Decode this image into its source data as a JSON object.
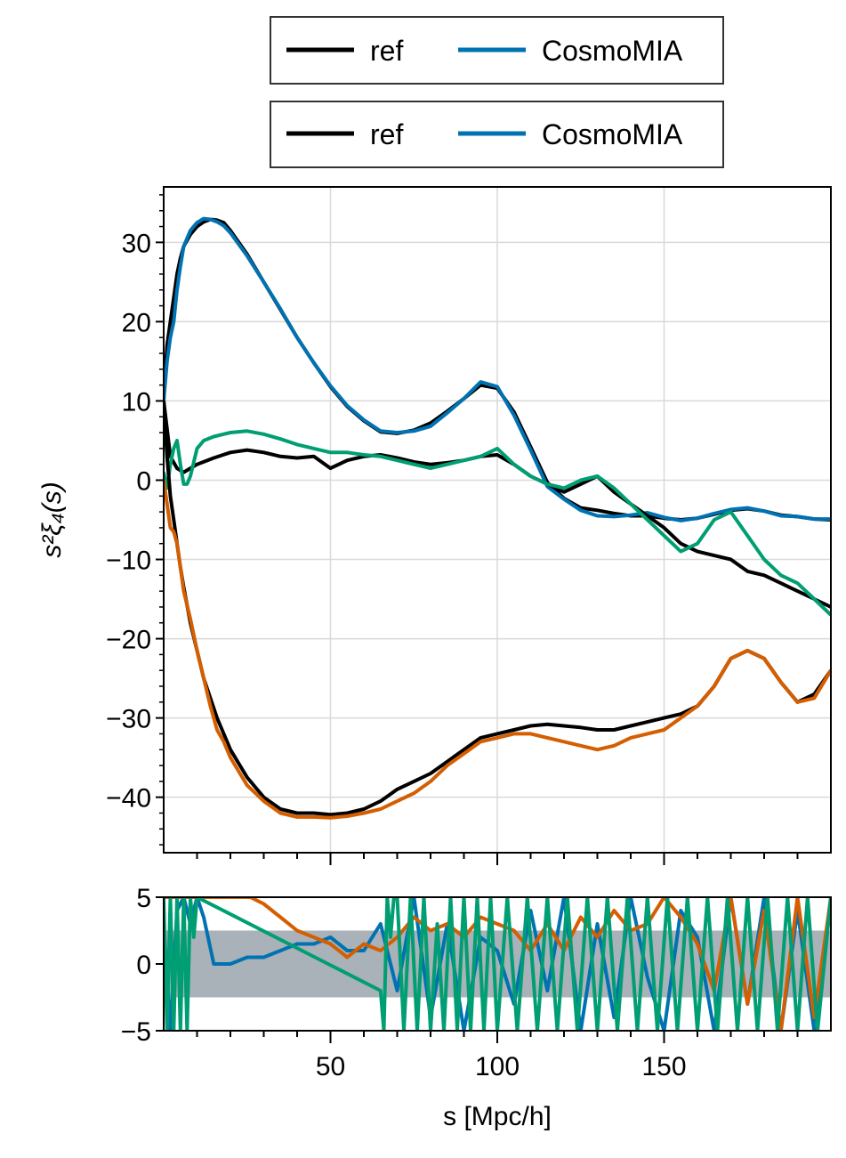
{
  "legends": [
    {
      "entries": [
        {
          "label": "ref",
          "color": "#000000"
        },
        {
          "label": "CosmoMIA",
          "color": "#0072b2"
        }
      ]
    },
    {
      "entries": [
        {
          "label": "ref",
          "color": "#000000"
        },
        {
          "label": "CosmoMIA",
          "color": "#0072b2"
        }
      ]
    }
  ],
  "chart_data": [
    {
      "type": "line",
      "ylabel": "s²ξ₄(s)",
      "xlim": [
        0,
        200
      ],
      "ylim": [
        -47,
        37
      ],
      "yticks": [
        -40,
        -30,
        -20,
        -10,
        0,
        10,
        20,
        30
      ],
      "yticklabels": [
        "−40",
        "−30",
        "−20",
        "−10",
        "0",
        "10",
        "20",
        "30"
      ],
      "xticks_major": [
        50,
        100,
        150
      ],
      "grid": true,
      "colors": {
        "ref": "#000000",
        "cosmomia": "#0072b2",
        "orange": "#d55e00",
        "green": "#009e73"
      },
      "series": [
        {
          "name": "ref",
          "color": "#000000",
          "role": "ref-blue",
          "x": [
            0,
            1,
            2,
            3,
            4,
            5,
            6,
            8,
            10,
            12,
            14,
            16,
            18,
            20,
            25,
            30,
            35,
            40,
            45,
            50,
            55,
            60,
            65,
            70,
            75,
            80,
            85,
            90,
            95,
            100,
            105,
            110,
            115,
            120,
            125,
            130,
            135,
            140,
            145,
            150,
            155,
            160,
            165,
            170,
            175,
            180,
            185,
            190,
            195,
            200
          ],
          "y": [
            10,
            17,
            20,
            23,
            26,
            28,
            29.5,
            31,
            32,
            32.6,
            32.9,
            32.8,
            32.5,
            31.5,
            28.5,
            25,
            21.5,
            18,
            14.8,
            11.8,
            9.3,
            7.5,
            6.1,
            5.9,
            6.3,
            7.2,
            8.7,
            10.3,
            12.0,
            11.6,
            8.6,
            4.2,
            -0.3,
            -2.3,
            -3.5,
            -3.8,
            -4.2,
            -4.5,
            -4.5,
            -4.8,
            -5.0,
            -4.8,
            -4.3,
            -3.8,
            -3.6,
            -3.9,
            -4.4,
            -4.6,
            -4.9,
            -5.0
          ]
        },
        {
          "name": "CosmoMIA",
          "color": "#0072b2",
          "role": "blue",
          "x": [
            0,
            1,
            2,
            3,
            4,
            5,
            6,
            8,
            10,
            12,
            14,
            16,
            18,
            20,
            25,
            30,
            35,
            40,
            45,
            50,
            55,
            60,
            65,
            70,
            75,
            80,
            85,
            90,
            95,
            100,
            105,
            110,
            115,
            120,
            125,
            130,
            135,
            140,
            145,
            150,
            155,
            160,
            165,
            170,
            175,
            180,
            185,
            190,
            195,
            200
          ],
          "y": [
            10,
            15,
            18,
            20,
            24,
            27,
            29.5,
            31.5,
            32.5,
            33.0,
            32.9,
            32.6,
            32.1,
            31.2,
            28.3,
            25,
            21.6,
            18,
            14.8,
            11.9,
            9.4,
            7.6,
            6.2,
            6.0,
            6.2,
            6.8,
            8.5,
            10.3,
            12.4,
            11.8,
            8.2,
            3.8,
            -0.8,
            -2.4,
            -3.8,
            -4.5,
            -4.6,
            -4.4,
            -4.1,
            -4.7,
            -5.1,
            -4.8,
            -4.2,
            -3.7,
            -3.5,
            -3.9,
            -4.5,
            -4.6,
            -4.9,
            -4.9
          ]
        },
        {
          "name": "ref",
          "color": "#000000",
          "role": "ref-green",
          "x": [
            0,
            2,
            4,
            6,
            8,
            10,
            15,
            20,
            25,
            30,
            35,
            40,
            45,
            50,
            55,
            60,
            65,
            70,
            75,
            80,
            85,
            90,
            95,
            100,
            105,
            110,
            115,
            120,
            125,
            130,
            135,
            140,
            145,
            150,
            155,
            160,
            165,
            170,
            175,
            180,
            185,
            190,
            195,
            200
          ],
          "y": [
            10,
            3,
            1.5,
            1.0,
            1.5,
            2.0,
            2.8,
            3.5,
            3.8,
            3.5,
            3.0,
            2.8,
            3.0,
            1.5,
            2.5,
            3.0,
            3.2,
            2.8,
            2.3,
            2.0,
            2.2,
            2.5,
            3.0,
            3.2,
            2.0,
            0.5,
            -0.5,
            -1.5,
            -0.5,
            0.5,
            -1.5,
            -3.0,
            -4.5,
            -6.0,
            -8.0,
            -9.0,
            -9.5,
            -10.0,
            -11.5,
            -12.0,
            -13.0,
            -14.0,
            -15.0,
            -16.0
          ]
        },
        {
          "name": "",
          "color": "#009e73",
          "role": "green",
          "x": [
            0,
            1,
            2,
            3,
            4,
            5,
            6,
            7,
            8,
            10,
            12,
            15,
            20,
            25,
            30,
            35,
            40,
            45,
            50,
            55,
            60,
            65,
            70,
            75,
            80,
            85,
            90,
            95,
            100,
            105,
            110,
            115,
            120,
            125,
            130,
            135,
            140,
            145,
            150,
            155,
            160,
            165,
            170,
            175,
            180,
            185,
            190,
            195,
            200
          ],
          "y": [
            1,
            -1,
            2,
            4,
            5,
            2,
            -0.5,
            -0.5,
            0.5,
            4.0,
            5.0,
            5.5,
            6.0,
            6.2,
            5.8,
            5.2,
            4.5,
            4.0,
            3.5,
            3.5,
            3.2,
            3.0,
            2.5,
            2.0,
            1.5,
            2.0,
            2.5,
            3.0,
            4.0,
            2.0,
            0.5,
            -0.5,
            -1.0,
            0.0,
            0.5,
            -1.0,
            -3.0,
            -5.0,
            -7.0,
            -9.0,
            -8.0,
            -5.0,
            -4.0,
            -7.0,
            -10.0,
            -12.0,
            -13.0,
            -15.0,
            -17.0
          ]
        },
        {
          "name": "ref",
          "color": "#000000",
          "role": "ref-orange",
          "x": [
            0,
            1,
            2,
            3,
            4,
            5,
            6,
            8,
            10,
            12,
            14,
            16,
            18,
            20,
            25,
            30,
            35,
            40,
            45,
            50,
            55,
            60,
            65,
            70,
            75,
            80,
            85,
            90,
            95,
            100,
            105,
            110,
            115,
            120,
            125,
            130,
            135,
            140,
            145,
            150,
            155,
            160,
            165,
            170,
            175,
            180,
            185,
            190,
            195,
            200
          ],
          "y": [
            10,
            3,
            -2,
            -5,
            -8,
            -11,
            -13.5,
            -18,
            -21.5,
            -25,
            -27.5,
            -30,
            -32,
            -34,
            -37.5,
            -40,
            -41.5,
            -42,
            -42,
            -42.2,
            -42,
            -41.5,
            -40.5,
            -39,
            -38,
            -37,
            -35.5,
            -34,
            -32.5,
            -32,
            -31.5,
            -31,
            -30.8,
            -31,
            -31.2,
            -31.5,
            -31.5,
            -31,
            -30.5,
            -30,
            -29.5,
            -28.5,
            -26,
            -22.5,
            -21.5,
            -22.5,
            -25.5,
            -28,
            -27,
            -24
          ]
        },
        {
          "name": "",
          "color": "#d55e00",
          "role": "orange",
          "x": [
            0,
            1,
            2,
            3,
            4,
            5,
            6,
            8,
            10,
            12,
            14,
            16,
            18,
            20,
            25,
            30,
            35,
            40,
            45,
            50,
            55,
            60,
            65,
            70,
            75,
            80,
            85,
            90,
            95,
            100,
            105,
            110,
            115,
            120,
            125,
            130,
            135,
            140,
            145,
            150,
            155,
            160,
            165,
            170,
            175,
            180,
            185,
            190,
            195,
            200
          ],
          "y": [
            0,
            -3,
            -6,
            -6.5,
            -8,
            -11,
            -14,
            -17.5,
            -21.5,
            -25,
            -28.5,
            -31.5,
            -33,
            -35,
            -38.5,
            -40.5,
            -42,
            -42.5,
            -42.5,
            -42.6,
            -42.4,
            -42,
            -41.5,
            -40.5,
            -39.5,
            -38,
            -36,
            -34.5,
            -33,
            -32.5,
            -32,
            -32,
            -32.5,
            -33,
            -33.5,
            -34,
            -33.5,
            -32.5,
            -32,
            -31.5,
            -30,
            -28.5,
            -26,
            -22.5,
            -21.5,
            -22.5,
            -25.5,
            -28,
            -27.5,
            -24
          ]
        }
      ]
    },
    {
      "type": "line",
      "xlabel": "s [Mpc/h]",
      "xlim": [
        0,
        200
      ],
      "ylim": [
        -5,
        5
      ],
      "yticks": [
        -5,
        0,
        5
      ],
      "yticklabels": [
        "−5",
        "0",
        "5"
      ],
      "xticks": [
        50,
        100,
        150
      ],
      "xticklabels": [
        "50",
        "100",
        "150"
      ],
      "band": [
        -2.5,
        2.5
      ],
      "band_color": "#a9b1b9",
      "series": [
        {
          "color": "#0072b2",
          "x": [
            0,
            2,
            4,
            6,
            8,
            10,
            12,
            15,
            20,
            25,
            30,
            35,
            40,
            45,
            50,
            55,
            60,
            65,
            70,
            75,
            80,
            85,
            90,
            95,
            100,
            105,
            110,
            115,
            120,
            125,
            130,
            135,
            140,
            145,
            150,
            155,
            160,
            165,
            170,
            175,
            180,
            185,
            190,
            195,
            200
          ],
          "y": [
            3,
            -5,
            4,
            5,
            3,
            5,
            3.5,
            0,
            0,
            0.5,
            0.5,
            1.0,
            1.5,
            1.5,
            2.0,
            1.0,
            1.0,
            3.0,
            -2.0,
            5.0,
            -4.0,
            3.0,
            -5.0,
            2.0,
            1.0,
            -3.0,
            4.0,
            -2.0,
            5.0,
            -5.0,
            3.0,
            -4.0,
            5.0,
            -1.0,
            -5.0,
            4.0,
            2.0,
            -5.0,
            5.0,
            -3.0,
            5.0,
            -5.0,
            4.0,
            -5.0,
            5.0
          ]
        },
        {
          "color": "#d55e00",
          "x": [
            0,
            3,
            6,
            10,
            15,
            20,
            23,
            26,
            30,
            35,
            40,
            45,
            50,
            55,
            60,
            65,
            70,
            75,
            80,
            85,
            90,
            95,
            100,
            105,
            110,
            115,
            120,
            125,
            130,
            135,
            140,
            145,
            150,
            155,
            160,
            165,
            170,
            175,
            180,
            185,
            190,
            195,
            200
          ],
          "y": [
            5,
            5,
            5,
            5,
            5,
            5,
            5,
            5,
            4.5,
            3.5,
            2.5,
            2.0,
            1.5,
            0.5,
            1.5,
            1.0,
            2.0,
            3.5,
            2.5,
            3.0,
            2.0,
            3.5,
            3.0,
            2.5,
            1.0,
            3.0,
            1.0,
            3.5,
            2.0,
            4.0,
            2.5,
            3.0,
            5.0,
            3.5,
            1.5,
            -2.0,
            5.0,
            -3.0,
            4.0,
            -5.0,
            5.0,
            -4.0,
            5.0
          ]
        },
        {
          "color": "#009e73",
          "x": [
            0,
            1,
            2,
            3,
            4,
            5,
            6,
            7,
            8,
            9,
            10,
            65,
            66,
            67,
            68,
            69,
            70,
            72,
            74,
            76,
            78,
            80,
            82,
            84,
            86,
            88,
            90,
            92,
            94,
            96,
            98,
            100,
            103,
            106,
            109,
            112,
            115,
            118,
            121,
            124,
            127,
            130,
            133,
            136,
            139,
            142,
            145,
            148,
            151,
            154,
            157,
            160,
            163,
            166,
            169,
            172,
            175,
            178,
            181,
            184,
            187,
            190,
            193,
            196,
            200
          ],
          "y": [
            5,
            -5,
            5,
            -5,
            5,
            -5,
            5,
            -5,
            5,
            2,
            5,
            -2,
            -5,
            5,
            2,
            5,
            5,
            -5,
            5,
            -5,
            5,
            -5,
            3,
            -5,
            5,
            -5,
            5,
            -5,
            5,
            -5,
            5,
            -5,
            5,
            -5,
            5,
            -5,
            5,
            -5,
            5,
            -5,
            5,
            -5,
            5,
            -5,
            5,
            -5,
            5,
            -5,
            5,
            -5,
            5,
            -5,
            5,
            -5,
            5,
            -5,
            5,
            -5,
            5,
            -5,
            5,
            -5,
            5,
            -5,
            5
          ]
        }
      ]
    }
  ]
}
